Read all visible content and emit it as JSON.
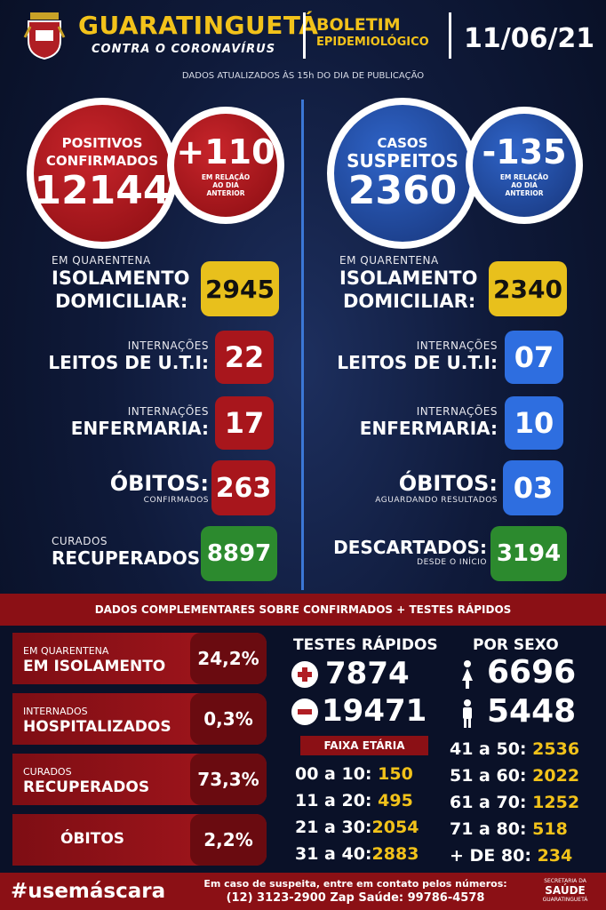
{
  "header": {
    "city": "GUARATINGUETÁ",
    "tagline": "CONTRA O CORONAVÍRUS",
    "boletim": "BOLETIM",
    "epidemiologico": "EPIDEMIOLÓGICO",
    "date": "11/06/21",
    "updated": "DADOS ATUALIZADOS ÀS 15h DO DIA DE PUBLICAÇÃO"
  },
  "confirmed": {
    "label1": "POSITIVOS",
    "label2": "CONFIRMADOS",
    "value": "12144",
    "delta": "+110",
    "delta_note1": "EM RELAÇÃO",
    "delta_note2": "AO DIA",
    "delta_note3": "ANTERIOR",
    "isolation_small": "EM QUARENTENA",
    "isolation_big1": "ISOLAMENTO",
    "isolation_big2": "DOMICILIAR:",
    "isolation_value": "2945",
    "uti_small": "INTERNAÇÕES",
    "uti_big": "LEITOS DE U.T.I:",
    "uti_value": "22",
    "enf_small": "INTERNAÇÕES",
    "enf_big": "ENFERMARIA:",
    "enf_value": "17",
    "obitos_big": "ÓBITOS:",
    "obitos_small": "CONFIRMADOS",
    "obitos_value": "263",
    "curados_small": "CURADOS",
    "curados_big": "RECUPERADOS:",
    "curados_value": "8897"
  },
  "suspected": {
    "label1": "CASOS",
    "label2": "SUSPEITOS",
    "value": "2360",
    "delta": "-135",
    "delta_note1": "EM RELAÇÃO",
    "delta_note2": "AO DIA",
    "delta_note3": "ANTERIOR",
    "isolation_small": "EM QUARENTENA",
    "isolation_big1": "ISOLAMENTO",
    "isolation_big2": "DOMICILIAR:",
    "isolation_value": "2340",
    "uti_small": "INTERNAÇÕES",
    "uti_big": "LEITOS DE U.T.I:",
    "uti_value": "07",
    "enf_small": "INTERNAÇÕES",
    "enf_big": "ENFERMARIA:",
    "enf_value": "10",
    "obitos_big": "ÓBITOS:",
    "obitos_small": "AGUARDANDO RESULTADOS",
    "obitos_value": "03",
    "descartados_big": "DESCARTADOS:",
    "descartados_small": "DESDE O INÍCIO",
    "descartados_value": "3194"
  },
  "band": "DADOS COMPLEMENTARES SOBRE CONFIRMADOS + TESTES RÁPIDOS",
  "percentages": [
    {
      "small": "EM QUARENTENA",
      "big": "EM ISOLAMENTO",
      "value": "24,2%"
    },
    {
      "small": "INTERNADOS",
      "big": "HOSPITALIZADOS",
      "value": "0,3%"
    },
    {
      "small": "CURADOS",
      "big": "RECUPERADOS",
      "value": "73,3%"
    },
    {
      "small": "",
      "big": "ÓBITOS",
      "value": "2,2%"
    }
  ],
  "rapid_tests": {
    "title": "TESTES RÁPIDOS",
    "positive": "7874",
    "negative": "19471"
  },
  "sex": {
    "title": "POR SEXO",
    "female": "6696",
    "male": "5448"
  },
  "age": {
    "title": "FAIXA ETÁRIA",
    "left": [
      {
        "range": "00 a 10:",
        "value": "150"
      },
      {
        "range": "11 a 20:",
        "value": "495"
      },
      {
        "range": "21 a 30:",
        "value": "2054"
      },
      {
        "range": "31 a 40:",
        "value": "2883"
      }
    ],
    "right": [
      {
        "range": "41 a 50:",
        "value": "2536"
      },
      {
        "range": "51 a 60:",
        "value": "2022"
      },
      {
        "range": "61 a 70:",
        "value": "1252"
      },
      {
        "range": "71 a 80:",
        "value": "518"
      },
      {
        "range": "+ DE 80:",
        "value": "234"
      }
    ]
  },
  "footer": {
    "hashtag": "#usemáscara",
    "contact1": "Em caso de suspeita, entre em contato pelos números:",
    "contact2": "(12) 3123-2900 Zap Saúde: 99786-4578",
    "sec1": "SECRETARIA DA",
    "sec2": "SAÚDE",
    "sec3": "GUARATINGUETÁ"
  },
  "colors": {
    "accent": "#f2c21a",
    "red": "#a8161c",
    "blue": "#2e6ee0",
    "green": "#2c8a2e",
    "bg": "#0b1530"
  }
}
